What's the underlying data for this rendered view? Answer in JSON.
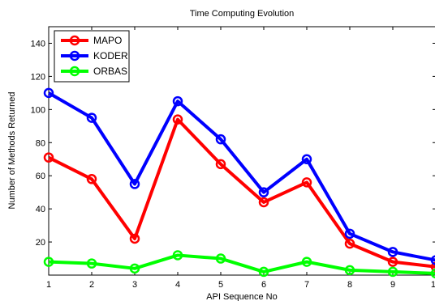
{
  "chart_data": {
    "type": "line",
    "title": "Time Computing Evolution",
    "xlabel": "API Sequence No",
    "ylabel": "Number of Methods Returned",
    "x": [
      1,
      2,
      3,
      4,
      5,
      6,
      7,
      8,
      9,
      10
    ],
    "xlim": [
      1,
      10
    ],
    "ylim": [
      0,
      150
    ],
    "yticks": [
      20,
      40,
      60,
      80,
      100,
      120,
      140
    ],
    "grid": false,
    "legend_position": "top-left",
    "series": [
      {
        "name": "MAPO",
        "color": "#ff0000",
        "values": [
          71,
          58,
          22,
          94,
          67,
          44,
          56,
          19,
          8,
          5
        ]
      },
      {
        "name": " KODER",
        "color": "#0000ff",
        "values": [
          110,
          95,
          55,
          105,
          82,
          50,
          70,
          25,
          14,
          9
        ]
      },
      {
        "name": "ORBAS",
        "color": "#00ff00",
        "values": [
          8,
          7,
          4,
          12,
          10,
          2,
          8,
          3,
          2,
          1
        ]
      }
    ]
  }
}
